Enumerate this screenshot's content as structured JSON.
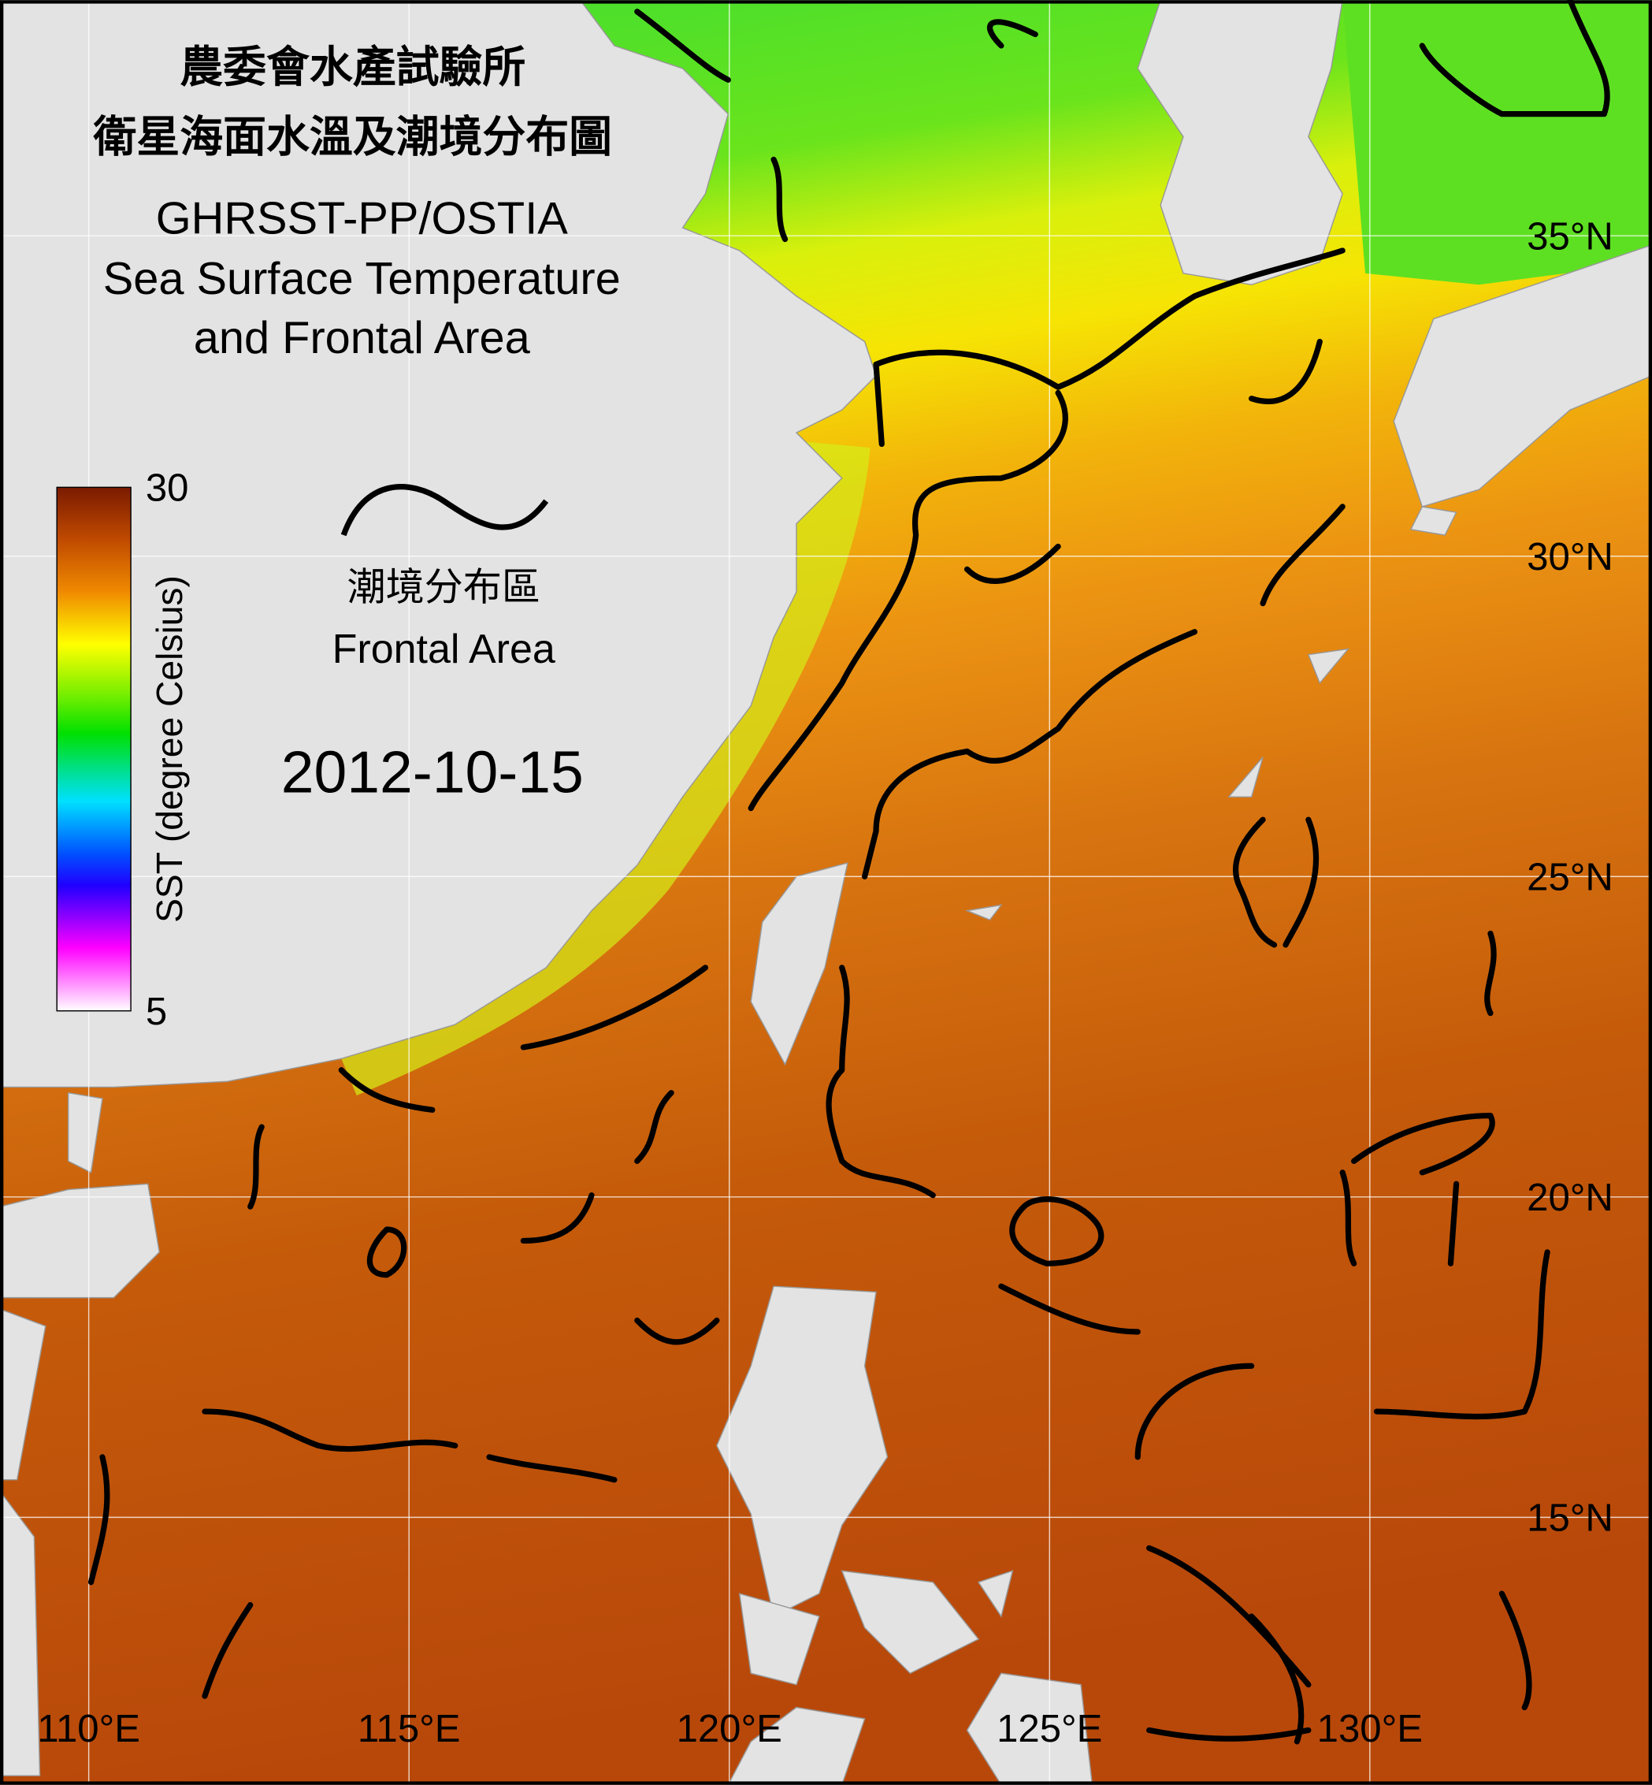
{
  "header": {
    "title_lines": [
      "農委會水產試驗所",
      "衛星海面水溫及潮境分布圖",
      "GHRSST-PP/OSTIA",
      "Sea Surface Temperature",
      "and Frontal Area"
    ]
  },
  "legend": {
    "colorbar": {
      "label": "SST (degree Celsius)",
      "ticks": [
        30,
        5
      ]
    },
    "front_label_zh": "潮境分布區",
    "front_label_en": "Frontal Area"
  },
  "date": "2012-10-15",
  "map": {
    "lon_lines": [
      {
        "value": 110,
        "label": "110°E"
      },
      {
        "value": 115,
        "label": "115°E"
      },
      {
        "value": 120,
        "label": "120°E"
      },
      {
        "value": 125,
        "label": "125°E"
      },
      {
        "value": 130,
        "label": "130°E"
      }
    ],
    "lat_lines": [
      {
        "value": 35,
        "label": "35°N"
      },
      {
        "value": 30,
        "label": "30°N"
      },
      {
        "value": 25,
        "label": "25°N"
      },
      {
        "value": 20,
        "label": "20°N"
      },
      {
        "value": 15,
        "label": "15°N"
      }
    ]
  }
}
